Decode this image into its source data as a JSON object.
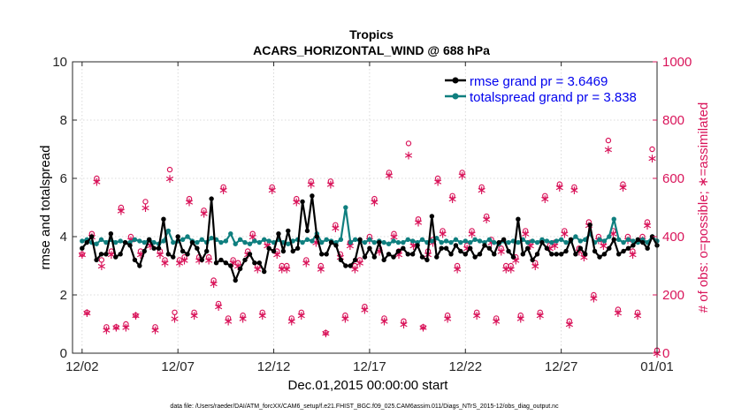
{
  "colors": {
    "rmse": "#000000",
    "spread": "#0f7f7f",
    "obs": "#d9145a",
    "legend_text": "#0000ee",
    "axis": "#262626"
  },
  "chart_data": {
    "type": "line",
    "title": "Tropics",
    "subtitle": "ACARS_HORIZONTAL_WIND @ 688 hPa",
    "xlabel": "Dec.01,2015 00:00:00 start",
    "ylabel_left": "rmse and totalspread",
    "ylabel_right": "# of obs: o=possible; ∗=assimilated",
    "footnote": "data file: /Users/raeder/DAI/ATM_forcXX/CAM6_setup/f.e21.FHIST_BGC.f09_025.CAM6assim.011/Diags_NTrS_2015-12/obs_diag_output.nc",
    "xlim": [
      0.5,
      31.0
    ],
    "ylim_left": [
      0,
      10
    ],
    "ylim_right": [
      0,
      1000
    ],
    "x_ticks": [
      1.0,
      6.0,
      11.0,
      16.0,
      21.0,
      26.0,
      31.0
    ],
    "x_tick_labels": [
      "12/02",
      "12/07",
      "12/12",
      "12/17",
      "12/22",
      "12/27",
      "01/01"
    ],
    "y_ticks_left": [
      0,
      2,
      4,
      6,
      8,
      10
    ],
    "y_ticks_right": [
      0,
      200,
      400,
      600,
      800,
      1000
    ],
    "legend": [
      {
        "key": "rmse",
        "label": "rmse grand pr = 3.6469"
      },
      {
        "key": "spread",
        "label": "totalspread grand pr = 3.838"
      }
    ],
    "series": [
      {
        "name": "rmse",
        "values": [
          3.6,
          3.8,
          4.0,
          3.2,
          3.4,
          3.4,
          4.1,
          3.3,
          3.4,
          3.8,
          3.7,
          3.2,
          3.0,
          3.5,
          3.9,
          3.6,
          3.6,
          4.6,
          3.4,
          3.3,
          4.0,
          3.5,
          3.4,
          3.8,
          3.6,
          3.2,
          3.5,
          5.3,
          3.1,
          3.2,
          3.1,
          3.0,
          2.5,
          2.9,
          3.2,
          3.4,
          3.1,
          3.1,
          2.8,
          3.6,
          3.5,
          4.1,
          3.5,
          4.2,
          3.5,
          3.6,
          5.2,
          4.2,
          5.4,
          4.0,
          3.4,
          3.4,
          3.8,
          3.7,
          3.2,
          3.0,
          3.0,
          3.2,
          3.9,
          3.3,
          3.6,
          3.3,
          3.8,
          3.2,
          3.4,
          3.3,
          3.5,
          3.6,
          3.4,
          3.4,
          3.7,
          3.3,
          3.2,
          4.7,
          3.3,
          3.6,
          3.6,
          3.4,
          3.7,
          3.5,
          3.4,
          3.6,
          3.3,
          3.4,
          3.7,
          3.6,
          3.4,
          3.8,
          3.9,
          3.5,
          3.3,
          4.6,
          3.4,
          3.6,
          3.2,
          3.4,
          3.8,
          3.6,
          3.4,
          3.4,
          3.4,
          3.5,
          3.9,
          3.4,
          3.6,
          3.4,
          4.4,
          3.5,
          3.3,
          3.4,
          3.6,
          3.9,
          3.4,
          3.5,
          3.6,
          3.7,
          3.9,
          3.8,
          3.6,
          4.0,
          3.7
        ]
      },
      {
        "name": "totalspread",
        "values": [
          3.85,
          3.9,
          3.8,
          3.75,
          3.9,
          3.8,
          3.9,
          3.8,
          3.85,
          3.8,
          3.8,
          3.9,
          3.85,
          3.8,
          3.9,
          3.8,
          3.75,
          3.85,
          4.2,
          3.8,
          3.85,
          3.9,
          4.0,
          3.85,
          3.8,
          3.9,
          3.8,
          3.95,
          3.9,
          3.8,
          3.85,
          4.1,
          3.75,
          3.9,
          3.8,
          3.75,
          3.85,
          3.8,
          3.9,
          3.85,
          3.8,
          3.9,
          3.8,
          3.75,
          3.85,
          3.9,
          3.8,
          3.9,
          3.85,
          4.1,
          3.8,
          3.9,
          3.85,
          3.8,
          3.9,
          5.0,
          3.8,
          3.9,
          3.85,
          3.8,
          3.9,
          3.8,
          3.85,
          3.8,
          3.75,
          3.85,
          3.8,
          3.8,
          3.9,
          3.85,
          3.8,
          3.9,
          3.8,
          3.85,
          3.95,
          3.8,
          3.85,
          3.8,
          3.9,
          3.8,
          3.85,
          3.8,
          3.9,
          3.85,
          3.8,
          3.9,
          3.8,
          3.75,
          3.85,
          3.8,
          3.85,
          3.8,
          3.9,
          3.8,
          3.85,
          3.8,
          3.9,
          3.85,
          3.8,
          3.85,
          3.9,
          3.8,
          3.85,
          4.0,
          3.85,
          3.9,
          4.1,
          3.8,
          3.9,
          3.85,
          4.0,
          4.6,
          3.9,
          3.8,
          3.9,
          3.85,
          3.8,
          3.9,
          3.8,
          4.0,
          3.85
        ]
      },
      {
        "name": "obs_possible",
        "values": [
          340,
          140,
          410,
          600,
          320,
          90,
          350,
          90,
          500,
          100,
          400,
          130,
          350,
          520,
          380,
          90,
          350,
          320,
          630,
          140,
          320,
          330,
          530,
          140,
          330,
          490,
          330,
          250,
          170,
          570,
          120,
          320,
          310,
          130,
          350,
          410,
          300,
          140,
          380,
          570,
          350,
          300,
          300,
          120,
          530,
          140,
          320,
          590,
          390,
          300,
          70,
          590,
          440,
          340,
          130,
          380,
          300,
          320,
          160,
          400,
          530,
          360,
          120,
          620,
          410,
          350,
          110,
          720,
          380,
          460,
          90,
          350,
          390,
          600,
          420,
          130,
          540,
          300,
          620,
          370,
          420,
          140,
          570,
          470,
          390,
          120,
          360,
          300,
          300,
          330,
          130,
          420,
          380,
          310,
          140,
          540,
          370,
          380,
          580,
          420,
          110,
          570,
          360,
          340,
          450,
          200,
          400,
          380,
          730,
          420,
          150,
          580,
          400,
          350,
          140,
          400,
          450,
          700,
          10
        ]
      },
      {
        "name": "obs_assimilated",
        "values": [
          340,
          140,
          400,
          590,
          300,
          80,
          340,
          90,
          490,
          90,
          390,
          130,
          340,
          500,
          370,
          80,
          340,
          310,
          600,
          120,
          310,
          320,
          520,
          130,
          320,
          480,
          320,
          240,
          160,
          560,
          110,
          310,
          300,
          120,
          340,
          400,
          290,
          130,
          370,
          560,
          340,
          290,
          290,
          110,
          520,
          130,
          310,
          580,
          380,
          290,
          70,
          580,
          430,
          330,
          120,
          370,
          290,
          310,
          150,
          390,
          520,
          350,
          110,
          610,
          400,
          340,
          100,
          680,
          370,
          450,
          90,
          340,
          380,
          590,
          410,
          120,
          530,
          290,
          610,
          360,
          410,
          130,
          560,
          460,
          380,
          110,
          350,
          290,
          290,
          320,
          120,
          410,
          370,
          300,
          130,
          530,
          360,
          370,
          570,
          410,
          100,
          560,
          350,
          330,
          440,
          190,
          390,
          370,
          700,
          410,
          140,
          570,
          390,
          340,
          130,
          390,
          440,
          670,
          0
        ]
      }
    ]
  }
}
